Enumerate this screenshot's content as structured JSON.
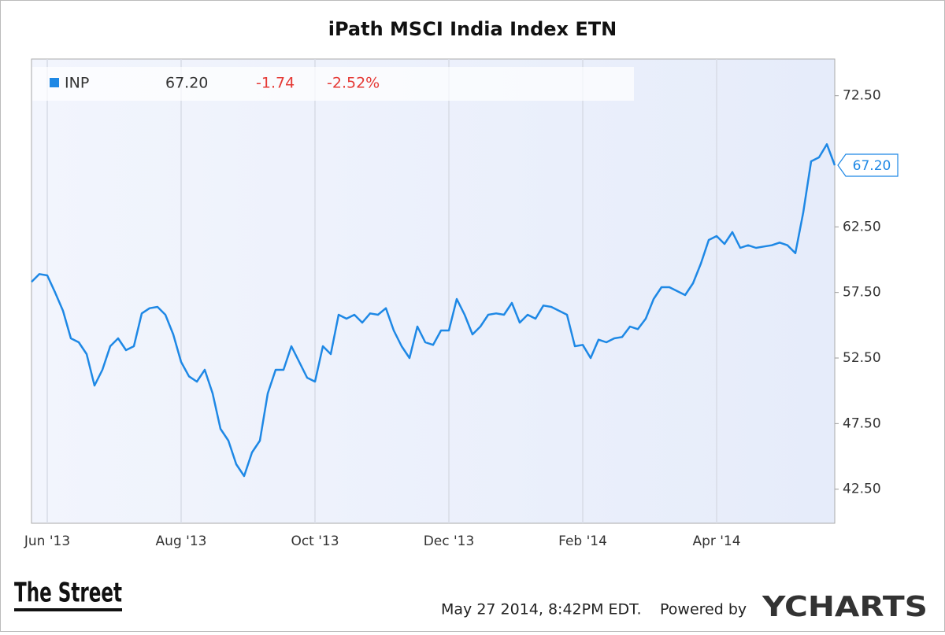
{
  "chart_data": {
    "type": "line",
    "title": "iPath MSCI India Index ETN",
    "categories": [
      null,
      null,
      "Jun '13",
      null,
      null,
      null,
      null,
      null,
      null,
      null,
      null,
      null,
      null,
      null,
      null,
      null,
      null,
      null,
      null,
      "Aug '13",
      null,
      null,
      null,
      null,
      null,
      null,
      null,
      null,
      null,
      null,
      null,
      null,
      null,
      null,
      null,
      null,
      "Oct '13",
      null,
      null,
      null,
      null,
      null,
      null,
      null,
      null,
      null,
      null,
      null,
      null,
      null,
      null,
      null,
      null,
      "Dec '13",
      null,
      null,
      null,
      null,
      null,
      null,
      null,
      null,
      null,
      null,
      null,
      null,
      null,
      null,
      null,
      null,
      "Feb '14",
      null,
      null,
      null,
      null,
      null,
      null,
      null,
      null,
      null,
      null,
      null,
      null,
      null,
      null,
      null,
      null,
      "Apr '14",
      null,
      null,
      null,
      null,
      null,
      null,
      null,
      null,
      null,
      null,
      null,
      null,
      null,
      null,
      null
    ],
    "series": [
      {
        "name": "INP",
        "color": "#1e88e5",
        "values": [
          58.3,
          58.9,
          58.8,
          57.5,
          56.1,
          54.0,
          53.7,
          52.8,
          50.4,
          51.6,
          53.4,
          54.0,
          53.1,
          53.4,
          55.9,
          56.3,
          56.4,
          55.8,
          54.3,
          52.2,
          51.1,
          50.7,
          51.6,
          49.8,
          47.1,
          46.2,
          44.4,
          43.5,
          45.3,
          46.2,
          49.8,
          51.6,
          51.6,
          53.4,
          52.2,
          51.0,
          50.7,
          53.4,
          52.8,
          55.8,
          55.5,
          55.8,
          55.2,
          55.9,
          55.8,
          56.3,
          54.6,
          53.4,
          52.5,
          54.9,
          53.7,
          53.5,
          54.6,
          54.6,
          57.0,
          55.8,
          54.3,
          54.9,
          55.8,
          55.9,
          55.8,
          56.7,
          55.2,
          55.8,
          55.5,
          56.5,
          56.4,
          56.1,
          55.8,
          53.4,
          53.5,
          52.5,
          53.9,
          53.7,
          54.0,
          54.1,
          54.9,
          54.7,
          55.5,
          57.0,
          57.9,
          57.9,
          57.6,
          57.3,
          58.2,
          59.7,
          61.5,
          61.8,
          61.2,
          62.1,
          60.9,
          61.1,
          60.9,
          61.0,
          61.1,
          61.3,
          61.1,
          60.5,
          63.6,
          67.5,
          67.8,
          68.8,
          67.2
        ]
      }
    ],
    "quote": {
      "price": "67.20",
      "change": "-1.74",
      "change_percent": "-2.52%"
    },
    "ylim": [
      39.9,
      75.3
    ],
    "yticks": [
      {
        "value": 42.5,
        "label": "42.50"
      },
      {
        "value": 47.5,
        "label": "47.50"
      },
      {
        "value": 52.5,
        "label": "52.50"
      },
      {
        "value": 57.5,
        "label": "57.50"
      },
      {
        "value": 62.5,
        "label": "62.50"
      },
      {
        "value": 72.5,
        "label": "72.50"
      }
    ],
    "grid": true,
    "timestamp": "May 27 2014, 8:42PM EDT.",
    "powered_by": "Powered by",
    "brand": "YCHARTS",
    "publisher": "The Street"
  }
}
